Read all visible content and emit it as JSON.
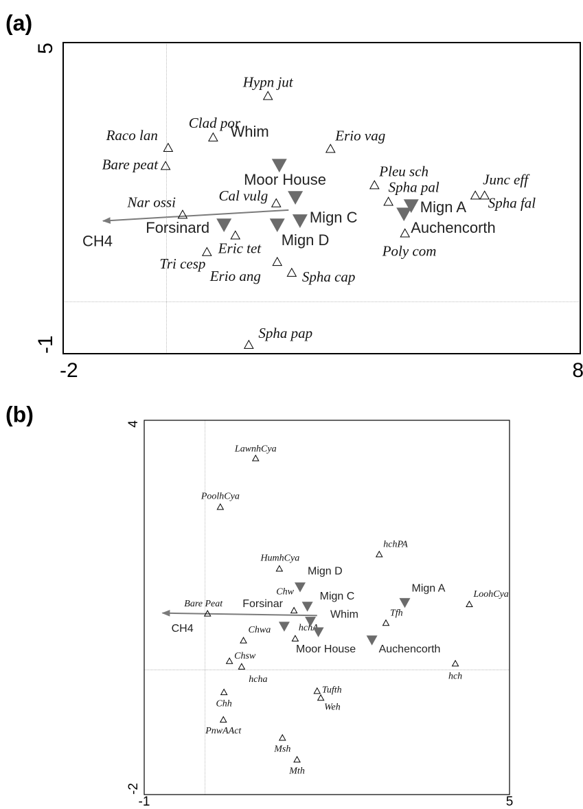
{
  "chart_data": [
    {
      "type": "scatter",
      "panel_label": "(a)",
      "xlim": [
        -2,
        8
      ],
      "ylim": [
        -1,
        5
      ],
      "xticks": [
        -2,
        8
      ],
      "yticks": [
        -1,
        5
      ],
      "hline": 0,
      "vline": 0,
      "series": [
        {
          "marker": "open-triangle",
          "color": "#000000",
          "labels": [
            "Hypn jut",
            "Clad por",
            "Raco lan",
            "Bare peat",
            "Erio vag",
            "Pleu sch",
            "Spha pal",
            "Junc eff",
            "Spha fal",
            "Poly com",
            "Nar ossi",
            "Cal vulg",
            "Eric tet",
            "Tri cesp",
            "Erio ang",
            "Spha cap",
            "Spha pap"
          ],
          "x": [
            1.96,
            0.9,
            0.03,
            -0.02,
            3.17,
            4.02,
            4.29,
            5.97,
            6.15,
            4.61,
            0.31,
            2.12,
            1.33,
            0.78,
            2.14,
            2.42,
            1.59
          ],
          "y": [
            3.97,
            3.17,
            2.97,
            2.62,
            2.95,
            2.25,
            1.93,
            2.05,
            2.05,
            1.32,
            1.68,
            1.9,
            1.28,
            0.96,
            0.77,
            0.56,
            -0.83
          ]
        },
        {
          "marker": "filled-down-triangle",
          "color": "#6b6b6b",
          "labels": [
            "Whim",
            "Moor House",
            "Mign C",
            "Mign D",
            "Forsinard",
            "Mign A",
            "Auchencorth"
          ],
          "x": [
            2.18,
            2.49,
            2.58,
            2.14,
            1.11,
            4.73,
            4.59
          ],
          "y": [
            2.64,
            2.02,
            1.57,
            1.49,
            1.49,
            1.86,
            1.7
          ]
        }
      ],
      "arrow": {
        "label": "CH4",
        "color": "#7a7a7a",
        "x": [
          2.36,
          -1.23
        ],
        "y": [
          1.77,
          1.56
        ]
      }
    },
    {
      "type": "scatter",
      "panel_label": "(b)",
      "xlim": [
        -1,
        5
      ],
      "ylim": [
        -2,
        4
      ],
      "xticks": [
        -1,
        5
      ],
      "yticks": [
        -2,
        4
      ],
      "hline": 0,
      "vline": 0,
      "series": [
        {
          "marker": "open-triangle",
          "color": "#000000",
          "labels": [
            "LawnhCya",
            "PoolhCya",
            "HumhCya",
            "hchPA",
            "LoohCya",
            "Bare Peat",
            "Chw",
            "Tfh",
            "Chwa",
            "hchA",
            "Chsw",
            "hcha",
            "hch",
            "Chh",
            "Tufth",
            "Weh",
            "PnwAAct",
            "Msh",
            "Mth"
          ],
          "x": [
            0.83,
            0.25,
            1.22,
            2.86,
            4.34,
            0.04,
            1.46,
            2.97,
            0.63,
            1.48,
            0.4,
            0.6,
            4.11,
            0.31,
            1.84,
            1.9,
            0.3,
            1.27,
            1.51
          ],
          "y": [
            3.39,
            2.61,
            1.62,
            1.85,
            1.05,
            0.9,
            0.95,
            0.75,
            0.47,
            0.5,
            0.14,
            0.05,
            0.1,
            -0.36,
            -0.34,
            -0.45,
            -0.8,
            -1.09,
            -1.44
          ]
        },
        {
          "marker": "filled-down-triangle",
          "color": "#6b6b6b",
          "labels": [
            "Mign D",
            "Mign C",
            "Mign A",
            "Forsinar",
            "Whim",
            "Moor House",
            "Auchencorth"
          ],
          "x": [
            1.56,
            1.68,
            3.28,
            1.3,
            1.73,
            1.86,
            2.74
          ],
          "y": [
            1.33,
            1.02,
            1.08,
            0.7,
            0.78,
            0.61,
            0.48
          ]
        }
      ],
      "arrow": {
        "label": "CH4",
        "color": "#7a7a7a",
        "x": [
          1.84,
          -0.7
        ],
        "y": [
          0.87,
          0.91
        ]
      }
    }
  ]
}
